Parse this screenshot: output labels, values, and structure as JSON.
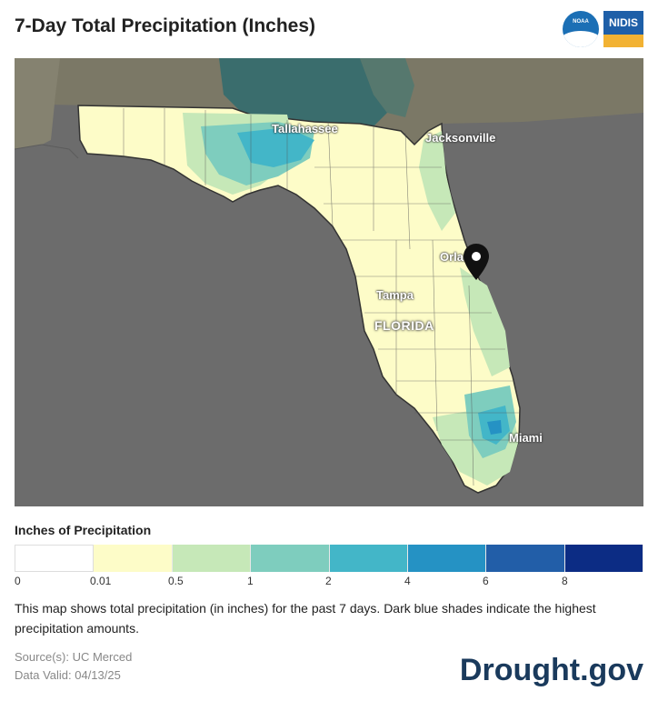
{
  "header": {
    "title": "7-Day Total Precipitation (Inches)",
    "logos": [
      {
        "name": "noaa-logo",
        "text": "NOAA",
        "color": "#1b6fb5"
      },
      {
        "name": "nidis-logo",
        "text": "NIDIS",
        "color": "#1e5fa8",
        "accent": "#f2b233"
      }
    ]
  },
  "map": {
    "state_label": "FLORIDA",
    "cities": [
      "Tallahassee",
      "Jacksonville",
      "Orlando",
      "Tampa",
      "Miami"
    ],
    "marker_icon": "map-pin-icon",
    "colors": {
      "ocean": "#6c6c6c",
      "neighbor_land": "#7b7866",
      "border": "#333333"
    }
  },
  "legend": {
    "title": "Inches of Precipitation",
    "bins": [
      {
        "label": "0",
        "color": "#ffffff"
      },
      {
        "label": "0.01",
        "color": "#fdfcc8"
      },
      {
        "label": "0.5",
        "color": "#c6e8b8"
      },
      {
        "label": "1",
        "color": "#7ecdbe"
      },
      {
        "label": "2",
        "color": "#43b6c8"
      },
      {
        "label": "4",
        "color": "#2592c4"
      },
      {
        "label": "6",
        "color": "#225ea8"
      },
      {
        "label": "8",
        "color": "#0c2c84"
      }
    ]
  },
  "description": "This map shows total precipitation (in inches) for the past 7 days. Dark blue shades indicate the highest precipitation amounts.",
  "source": {
    "line1": "Source(s): UC Merced",
    "line2": "Data Valid: 04/13/25"
  },
  "brand": "Drought.gov"
}
